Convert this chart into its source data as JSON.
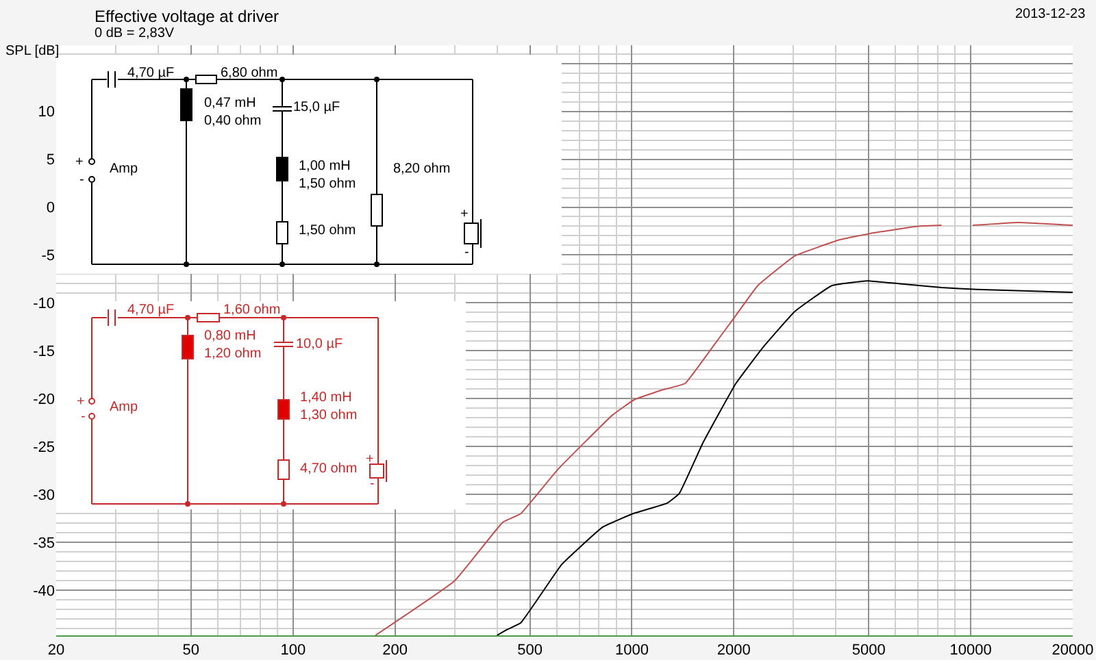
{
  "chart_data": {
    "type": "line",
    "title": "Effective voltage at driver",
    "subtitle": "0 dB = 2,83V",
    "ylabel": "SPL [dB]",
    "x": [
      175,
      300,
      416,
      470,
      604,
      877,
      1017,
      1225,
      1436,
      1731,
      2028,
      2352,
      3025,
      4115,
      5140,
      6985,
      8200,
      9200,
      10140,
      13800,
      20000
    ],
    "series": [
      {
        "color": "#c05050",
        "values": [
          -44.7,
          -39,
          -32.9,
          -32,
          -27.4,
          -21.7,
          -20.1,
          -19.1,
          -18.4,
          -14.6,
          -11.3,
          -8.2,
          -5.1,
          -3.4,
          -2.7,
          -2.0,
          -1.9,
          null,
          -1.9,
          -1.6,
          -1.9
        ]
      },
      {
        "color": "#000000",
        "x": [
          400,
          428,
          470,
          621,
          820,
          1008,
          1271,
          1380,
          1621,
          2028,
          2443,
          3025,
          3890,
          4950,
          6190,
          8200,
          10430,
          20000
        ],
        "values": [
          -44.7,
          -44.1,
          -43.4,
          -37.3,
          -33.4,
          -32,
          -30.9,
          -29.9,
          -24.6,
          -18.4,
          -14.6,
          -10.9,
          -8.2,
          -7.7,
          -8.0,
          -8.4,
          -8.6,
          -8.9
        ]
      }
    ],
    "log": "x",
    "xlim": [
      20,
      20000
    ],
    "xticks": [
      20,
      50,
      100,
      200,
      500,
      1000,
      2000,
      5000,
      10000,
      20000
    ],
    "ylim": [
      -44.7,
      16.9
    ],
    "yticks": [
      -40,
      -35,
      -30,
      -25,
      -20,
      -15,
      -10,
      -5,
      0,
      5,
      10,
      {
        "value": 15,
        "label": null
      }
    ],
    "grid": true,
    "line_style": "solid",
    "marker": "none",
    "annotations": [
      "2013-12-23",
      "4,70 µF",
      "6,80 ohm",
      "0,47 mH\n0,40 ohm",
      "15,0 µF",
      "1,00 mH\n1,50 ohm",
      "8,20 ohm",
      "1,50 ohm",
      "Amp",
      "+",
      "-",
      "+",
      "-",
      "4,70 µF",
      "1,60 ohm",
      "0,80 mH\n1,20 ohm",
      "10,0 µF",
      "1,40 mH\n1,30 ohm",
      "4,70 ohm",
      "Amp",
      "+",
      "-",
      "+",
      "-"
    ]
  }
}
